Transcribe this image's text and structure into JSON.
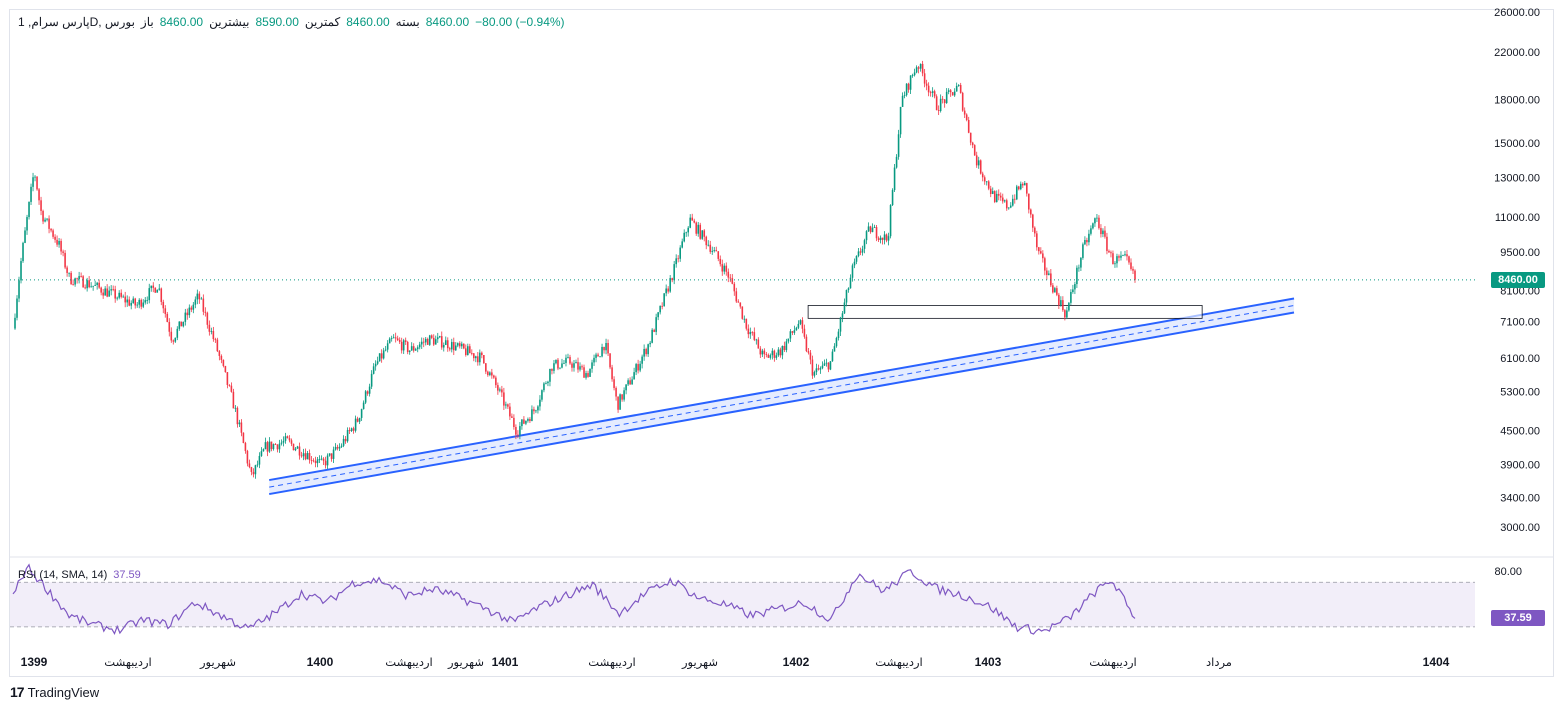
{
  "header": {
    "symbol": "پارس سرام, 1D, بورس",
    "open_label": "باز",
    "open": "8460.00",
    "high_label": "بیشترین",
    "high": "8590.00",
    "low_label": "کمترین",
    "low": "8460.00",
    "close_label": "بسته",
    "close": "8460.00",
    "change": "−80.00 (−0.94%)"
  },
  "rsi": {
    "label": "RSI (14, SMA, 14)",
    "value": "37.59",
    "upper": "80.00",
    "badge": "37.59"
  },
  "last_price_badge": "8460.00",
  "brand": "TradingView",
  "colors": {
    "up": "#089981",
    "down": "#f23645",
    "channel": "#2962ff",
    "rsi": "#7e57c2",
    "price_line": "#089981"
  },
  "chart_data": {
    "type": "candlestick",
    "y_scale": "log",
    "ylim": [
      2750,
      26000
    ],
    "y_ticks": [
      26000,
      22000,
      18000,
      15000,
      13000,
      11000,
      9500,
      8100,
      7100,
      6100,
      5300,
      4500,
      3900,
      3400,
      3000
    ],
    "x_labels": [
      "1399",
      "اردیبهشت",
      "شهریور",
      "1400",
      "اردیبهشت",
      "شهریور",
      "1401",
      "اردیبهشت",
      "شهریور",
      "1402",
      "اردیبهشت",
      "1403",
      "اردیبهشت",
      "مرداد",
      "1404"
    ],
    "last_price": 8460,
    "price_path": [
      [
        0,
        6900
      ],
      [
        0.5,
        9400
      ],
      [
        1.2,
        13400
      ],
      [
        1.6,
        11200
      ],
      [
        2.6,
        9800
      ],
      [
        3.2,
        8500
      ],
      [
        4,
        8400
      ],
      [
        5.5,
        8000
      ],
      [
        7,
        7600
      ],
      [
        8.2,
        8300
      ],
      [
        9,
        6600
      ],
      [
        10.5,
        7900
      ],
      [
        11.5,
        6400
      ],
      [
        12.5,
        5000
      ],
      [
        13.5,
        3700
      ],
      [
        14.3,
        4200
      ],
      [
        15.5,
        4300
      ],
      [
        16.5,
        4100
      ],
      [
        17.5,
        3900
      ],
      [
        18.5,
        4200
      ],
      [
        19.5,
        4700
      ],
      [
        20.5,
        5900
      ],
      [
        21.5,
        6600
      ],
      [
        22.5,
        6300
      ],
      [
        23.5,
        6600
      ],
      [
        24.5,
        6500
      ],
      [
        25.5,
        6300
      ],
      [
        26.5,
        6100
      ],
      [
        27.5,
        5300
      ],
      [
        28.5,
        4500
      ],
      [
        29.5,
        4900
      ],
      [
        30.5,
        5900
      ],
      [
        31.5,
        6000
      ],
      [
        32.5,
        5700
      ],
      [
        33.5,
        6500
      ],
      [
        34.2,
        5000
      ],
      [
        35,
        5600
      ],
      [
        36,
        6500
      ],
      [
        37.5,
        9000
      ],
      [
        38.3,
        10900
      ],
      [
        39.5,
        9700
      ],
      [
        40.5,
        8600
      ],
      [
        41.5,
        7000
      ],
      [
        42.5,
        6100
      ],
      [
        43.5,
        6300
      ],
      [
        44.5,
        7100
      ],
      [
        45.3,
        5700
      ],
      [
        46.3,
        6000
      ],
      [
        47.5,
        8800
      ],
      [
        48.5,
        10500
      ],
      [
        49.5,
        10000
      ],
      [
        50.3,
        18000
      ],
      [
        51.2,
        21000
      ],
      [
        52.3,
        17500
      ],
      [
        53.5,
        19000
      ],
      [
        54.5,
        14000
      ],
      [
        55.5,
        12000
      ],
      [
        56.3,
        11500
      ],
      [
        57.2,
        12800
      ],
      [
        58,
        9500
      ],
      [
        58.8,
        8300
      ],
      [
        59.6,
        7300
      ],
      [
        60.5,
        9500
      ],
      [
        61.3,
        11000
      ],
      [
        62.2,
        9200
      ],
      [
        63,
        9200
      ],
      [
        63.5,
        8460
      ]
    ],
    "support_channel": {
      "start": {
        "x": 14.5,
        "y": 3550
      },
      "end": {
        "x": 72.5,
        "y": 7600
      }
    },
    "support_zone": {
      "x1": 45.0,
      "x2": 67.3,
      "y_top": 7600,
      "y_bottom": 7200
    },
    "rsi_band": [
      30,
      70
    ],
    "rsi_path": [
      [
        0,
        58
      ],
      [
        0.8,
        84
      ],
      [
        1.8,
        66
      ],
      [
        3.2,
        40
      ],
      [
        4.5,
        32
      ],
      [
        6,
        27
      ],
      [
        7.3,
        36
      ],
      [
        8.8,
        32
      ],
      [
        10.3,
        52
      ],
      [
        11.8,
        40
      ],
      [
        13.3,
        28
      ],
      [
        14.8,
        42
      ],
      [
        16.3,
        60
      ],
      [
        17.8,
        52
      ],
      [
        19.3,
        70
      ],
      [
        20.8,
        72
      ],
      [
        22.3,
        58
      ],
      [
        23.8,
        64
      ],
      [
        25.3,
        56
      ],
      [
        26.8,
        46
      ],
      [
        28.3,
        34
      ],
      [
        29.8,
        48
      ],
      [
        31.3,
        58
      ],
      [
        32.8,
        68
      ],
      [
        34.3,
        42
      ],
      [
        35.8,
        60
      ],
      [
        37.3,
        72
      ],
      [
        38.8,
        56
      ],
      [
        40.3,
        50
      ],
      [
        41.8,
        40
      ],
      [
        43.3,
        46
      ],
      [
        44.8,
        52
      ],
      [
        46.3,
        36
      ],
      [
        47.8,
        78
      ],
      [
        49.3,
        62
      ],
      [
        50.8,
        80
      ],
      [
        52.3,
        64
      ],
      [
        53.8,
        58
      ],
      [
        55.3,
        48
      ],
      [
        56.8,
        30
      ],
      [
        58.3,
        26
      ],
      [
        59.8,
        38
      ],
      [
        61.3,
        62
      ],
      [
        62.2,
        72
      ],
      [
        63.5,
        37.59
      ]
    ]
  }
}
